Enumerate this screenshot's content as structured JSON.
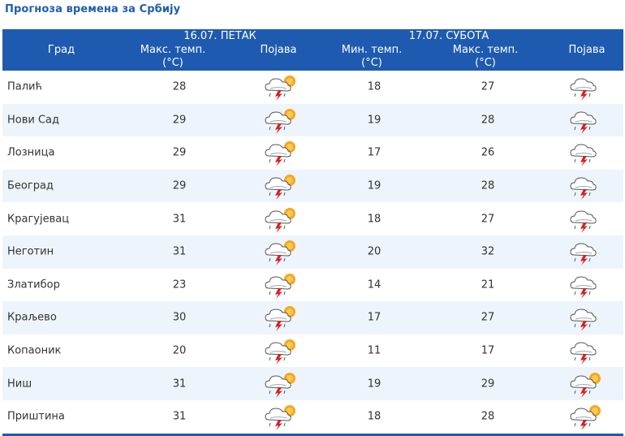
{
  "title": "Прогноза времена за Србију",
  "header": {
    "day1": "16.07. ПЕТАК",
    "day2": "17.07. СУБОТА",
    "city": "Град",
    "max_temp_1": "Макс. темп.",
    "unit": "(°C)",
    "condition_1": "Појава",
    "min_temp_2": "Мин. темп.",
    "max_temp_2": "Макс. темп.",
    "condition_2": "Појава"
  },
  "icons": {
    "day1": "thunderstorm-sun-icon",
    "day2_default": "thunderstorm-icon"
  },
  "rows": [
    {
      "city": "Палић",
      "max1": "28",
      "min2": "18",
      "max2": "27",
      "icon2": "thunderstorm-icon"
    },
    {
      "city": "Нови Сад",
      "max1": "29",
      "min2": "19",
      "max2": "28",
      "icon2": "thunderstorm-icon"
    },
    {
      "city": "Лозница",
      "max1": "29",
      "min2": "17",
      "max2": "26",
      "icon2": "thunderstorm-icon"
    },
    {
      "city": "Београд",
      "max1": "29",
      "min2": "19",
      "max2": "28",
      "icon2": "thunderstorm-icon"
    },
    {
      "city": "Крагујевац",
      "max1": "31",
      "min2": "18",
      "max2": "27",
      "icon2": "thunderstorm-icon"
    },
    {
      "city": "Неготин",
      "max1": "31",
      "min2": "20",
      "max2": "32",
      "icon2": "thunderstorm-icon"
    },
    {
      "city": "Златибор",
      "max1": "23",
      "min2": "14",
      "max2": "21",
      "icon2": "thunderstorm-icon"
    },
    {
      "city": "Краљево",
      "max1": "30",
      "min2": "17",
      "max2": "27",
      "icon2": "thunderstorm-icon"
    },
    {
      "city": "Копаоник",
      "max1": "20",
      "min2": "11",
      "max2": "17",
      "icon2": "thunderstorm-icon"
    },
    {
      "city": "Ниш",
      "max1": "31",
      "min2": "19",
      "max2": "29",
      "icon2": "thunderstorm-sun-icon"
    },
    {
      "city": "Приштина",
      "max1": "31",
      "min2": "18",
      "max2": "28",
      "icon2": "thunderstorm-sun-icon"
    }
  ],
  "colors": {
    "header_bg": "#1e5bb0",
    "title": "#1f5ea8",
    "row_alt": "#eef4fb",
    "sun": "#f5a623",
    "lightning": "#d62020"
  }
}
